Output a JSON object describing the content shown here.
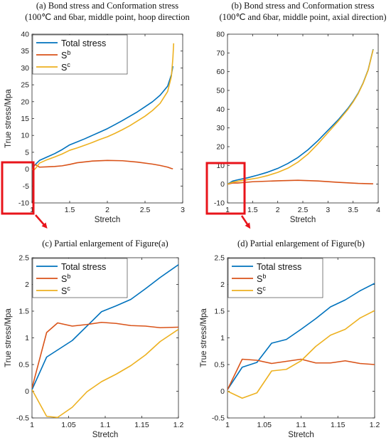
{
  "colors": {
    "total": "#0072BD",
    "sb": "#D95319",
    "sc": "#EDB120",
    "highlight": "#E8141B"
  },
  "chart_data": [
    {
      "id": "a",
      "type": "line",
      "title_line1": "(a) Bond stress and Conformation stress",
      "title_line2": "(100℃ and 6bar, middle point, hoop direction",
      "xlabel": "Stretch",
      "ylabel": "True stress/Mpa",
      "xlim": [
        1,
        3
      ],
      "ylim": [
        -10,
        40
      ],
      "xticks": [
        1,
        1.5,
        2,
        2.5,
        3
      ],
      "xtick_labels": [
        "1",
        "1.5",
        "2",
        "2.5",
        "3"
      ],
      "yticks": [
        -10,
        -5,
        0,
        5,
        10,
        15,
        20,
        25,
        30,
        35,
        40
      ],
      "ytick_labels": [
        "-10",
        "-5",
        "0",
        "5",
        "10",
        "15",
        "20",
        "25",
        "30",
        "35",
        "40"
      ],
      "legend": "top-left",
      "series": [
        {
          "key": "total",
          "name": "Total stress",
          "sup": "",
          "x": [
            1,
            1.02,
            1.05,
            1.1,
            1.2,
            1.3,
            1.4,
            1.5,
            1.6,
            1.7,
            1.8,
            1.9,
            2.0,
            2.1,
            2.2,
            2.3,
            2.4,
            2.5,
            2.6,
            2.7,
            2.8,
            2.85,
            2.87
          ],
          "y": [
            0,
            0.8,
            1.5,
            2.6,
            3.6,
            4.6,
            5.8,
            7.2,
            8.1,
            9.0,
            10.0,
            11.0,
            12.0,
            13.2,
            14.4,
            15.7,
            17.0,
            18.5,
            20.0,
            21.9,
            24.6,
            28.0,
            30.5
          ]
        },
        {
          "key": "sb",
          "name": "S",
          "sup": "b",
          "x": [
            1,
            1.02,
            1.05,
            1.1,
            1.2,
            1.3,
            1.4,
            1.5,
            1.6,
            1.8,
            2.0,
            2.2,
            2.4,
            2.6,
            2.7,
            2.8,
            2.85,
            2.87
          ],
          "y": [
            0,
            1.1,
            1.3,
            0.6,
            0.7,
            0.8,
            1.0,
            1.4,
            1.9,
            2.4,
            2.6,
            2.5,
            2.1,
            1.5,
            1.1,
            0.6,
            0.2,
            0.1
          ]
        },
        {
          "key": "sc",
          "name": "S",
          "sup": "c",
          "x": [
            1,
            1.02,
            1.05,
            1.1,
            1.2,
            1.3,
            1.4,
            1.5,
            1.6,
            1.7,
            1.8,
            1.9,
            2.0,
            2.1,
            2.2,
            2.3,
            2.4,
            2.5,
            2.6,
            2.7,
            2.8,
            2.85,
            2.87,
            2.88
          ],
          "y": [
            0,
            -0.4,
            0.3,
            1.8,
            2.8,
            3.6,
            4.5,
            5.6,
            6.3,
            7.1,
            7.9,
            8.8,
            9.6,
            10.6,
            11.7,
            12.9,
            14.3,
            15.7,
            17.4,
            19.5,
            23.0,
            27.5,
            33.0,
            37.3
          ]
        }
      ]
    },
    {
      "id": "b",
      "type": "line",
      "title_line1": "(b) Bond stress and Conformation stress",
      "title_line2": "(100℃ and 6bar, middle point, axial direction)",
      "xlabel": "Stretch",
      "ylabel": "",
      "xlim": [
        1,
        4
      ],
      "ylim": [
        -10,
        80
      ],
      "xticks": [
        1,
        1.5,
        2,
        2.5,
        3,
        3.5,
        4
      ],
      "xtick_labels": [
        "1",
        "1.5",
        "2",
        "2.5",
        "3",
        "3.5",
        "4"
      ],
      "yticks": [
        -10,
        0,
        10,
        20,
        30,
        40,
        50,
        60,
        70,
        80
      ],
      "ytick_labels": [
        "-10",
        "0",
        "10",
        "20",
        "30",
        "40",
        "50",
        "60",
        "70",
        "80"
      ],
      "legend": "none",
      "series": [
        {
          "key": "total",
          "name": "Total stress",
          "sup": "",
          "x": [
            1,
            1.1,
            1.2,
            1.4,
            1.6,
            1.8,
            2.0,
            2.2,
            2.4,
            2.6,
            2.8,
            3.0,
            3.2,
            3.4,
            3.5,
            3.6,
            3.7,
            3.8,
            3.9
          ],
          "y": [
            0,
            1.6,
            2.3,
            3.4,
            4.8,
            6.4,
            8.4,
            11.0,
            14.2,
            18.3,
            23.2,
            28.7,
            34.2,
            40.5,
            44.2,
            48.5,
            54.0,
            61.0,
            72.0
          ]
        },
        {
          "key": "sb",
          "name": "S",
          "sup": "b",
          "x": [
            1,
            1.1,
            1.2,
            1.5,
            2.0,
            2.4,
            2.8,
            3.2,
            3.6,
            3.9
          ],
          "y": [
            0,
            0.6,
            0.6,
            1.3,
            1.8,
            2.1,
            1.7,
            1.0,
            0.4,
            0.2
          ]
        },
        {
          "key": "sc",
          "name": "S",
          "sup": "c",
          "x": [
            1,
            1.1,
            1.2,
            1.4,
            1.6,
            1.8,
            2.0,
            2.2,
            2.4,
            2.6,
            2.8,
            3.0,
            3.2,
            3.4,
            3.5,
            3.6,
            3.7,
            3.8,
            3.9
          ],
          "y": [
            0,
            1.0,
            1.5,
            2.4,
            3.3,
            4.6,
            6.3,
            8.5,
            11.7,
            16.0,
            21.5,
            27.5,
            33.5,
            40.0,
            43.8,
            48.2,
            53.8,
            60.8,
            71.8
          ]
        }
      ]
    },
    {
      "id": "c",
      "type": "line",
      "title_line1": "(c) Partial enlargement of Figure(a)",
      "title_line2": "",
      "xlabel": "Stretch",
      "ylabel": "True stress/Mpa",
      "xlim": [
        1,
        1.2
      ],
      "ylim": [
        -0.5,
        2.5
      ],
      "xticks": [
        1,
        1.05,
        1.1,
        1.15,
        1.2
      ],
      "xtick_labels": [
        "1",
        "1.05",
        "1.1",
        "1.15",
        "1.2"
      ],
      "yticks": [
        -0.5,
        0,
        0.5,
        1,
        1.5,
        2,
        2.5
      ],
      "ytick_labels": [
        "-0.5",
        "0",
        "0.5",
        "1",
        "1.5",
        "2",
        "2.5"
      ],
      "legend": "top-left",
      "series": [
        {
          "key": "total",
          "name": "Total stress",
          "sup": "",
          "x": [
            1,
            1.02,
            1.055,
            1.095,
            1.115,
            1.135,
            1.155,
            1.175,
            1.2
          ],
          "y": [
            0.03,
            0.64,
            0.95,
            1.49,
            1.6,
            1.72,
            1.92,
            2.13,
            2.37
          ]
        },
        {
          "key": "sb",
          "name": "S",
          "sup": "b",
          "x": [
            1,
            1.02,
            1.035,
            1.055,
            1.075,
            1.095,
            1.115,
            1.135,
            1.155,
            1.175,
            1.2
          ],
          "y": [
            0.06,
            1.1,
            1.28,
            1.22,
            1.25,
            1.29,
            1.27,
            1.23,
            1.22,
            1.19,
            1.2
          ]
        },
        {
          "key": "sc",
          "name": "S",
          "sup": "c",
          "x": [
            1,
            1.02,
            1.035,
            1.055,
            1.075,
            1.095,
            1.115,
            1.135,
            1.155,
            1.175,
            1.2
          ],
          "y": [
            0.03,
            -0.47,
            -0.49,
            -0.3,
            -0.01,
            0.18,
            0.32,
            0.48,
            0.68,
            0.93,
            1.16
          ]
        }
      ]
    },
    {
      "id": "d",
      "type": "line",
      "title_line1": "(d) Partial enlargement of Figure(b)",
      "title_line2": "",
      "xlabel": "Stretch",
      "ylabel": "True stress/Mpa",
      "xlim": [
        1,
        1.2
      ],
      "ylim": [
        -0.5,
        2.5
      ],
      "xticks": [
        1,
        1.05,
        1.1,
        1.15,
        1.2
      ],
      "xtick_labels": [
        "1",
        "1.05",
        "1.1",
        "1.15",
        "1.2"
      ],
      "yticks": [
        -0.5,
        0,
        0.5,
        1,
        1.5,
        2,
        2.5
      ],
      "ytick_labels": [
        "-0.5",
        "0",
        "0.5",
        "1",
        "1.5",
        "2",
        "2.5"
      ],
      "legend": "top-left",
      "series": [
        {
          "key": "total",
          "name": "Total stress",
          "sup": "",
          "x": [
            1,
            1.02,
            1.04,
            1.06,
            1.08,
            1.1,
            1.12,
            1.14,
            1.16,
            1.18,
            1.2
          ],
          "y": [
            0.03,
            0.45,
            0.54,
            0.9,
            0.97,
            1.16,
            1.36,
            1.58,
            1.71,
            1.88,
            2.02
          ]
        },
        {
          "key": "sb",
          "name": "S",
          "sup": "b",
          "x": [
            1,
            1.02,
            1.04,
            1.06,
            1.08,
            1.1,
            1.12,
            1.14,
            1.16,
            1.18,
            1.2
          ],
          "y": [
            0.03,
            0.6,
            0.58,
            0.52,
            0.56,
            0.6,
            0.53,
            0.53,
            0.57,
            0.52,
            0.5
          ]
        },
        {
          "key": "sc",
          "name": "S",
          "sup": "c",
          "x": [
            1,
            1.02,
            1.04,
            1.06,
            1.08,
            1.1,
            1.12,
            1.14,
            1.16,
            1.18,
            1.2
          ],
          "y": [
            0.0,
            -0.13,
            -0.03,
            0.38,
            0.41,
            0.57,
            0.84,
            1.05,
            1.16,
            1.37,
            1.51
          ]
        }
      ]
    }
  ]
}
